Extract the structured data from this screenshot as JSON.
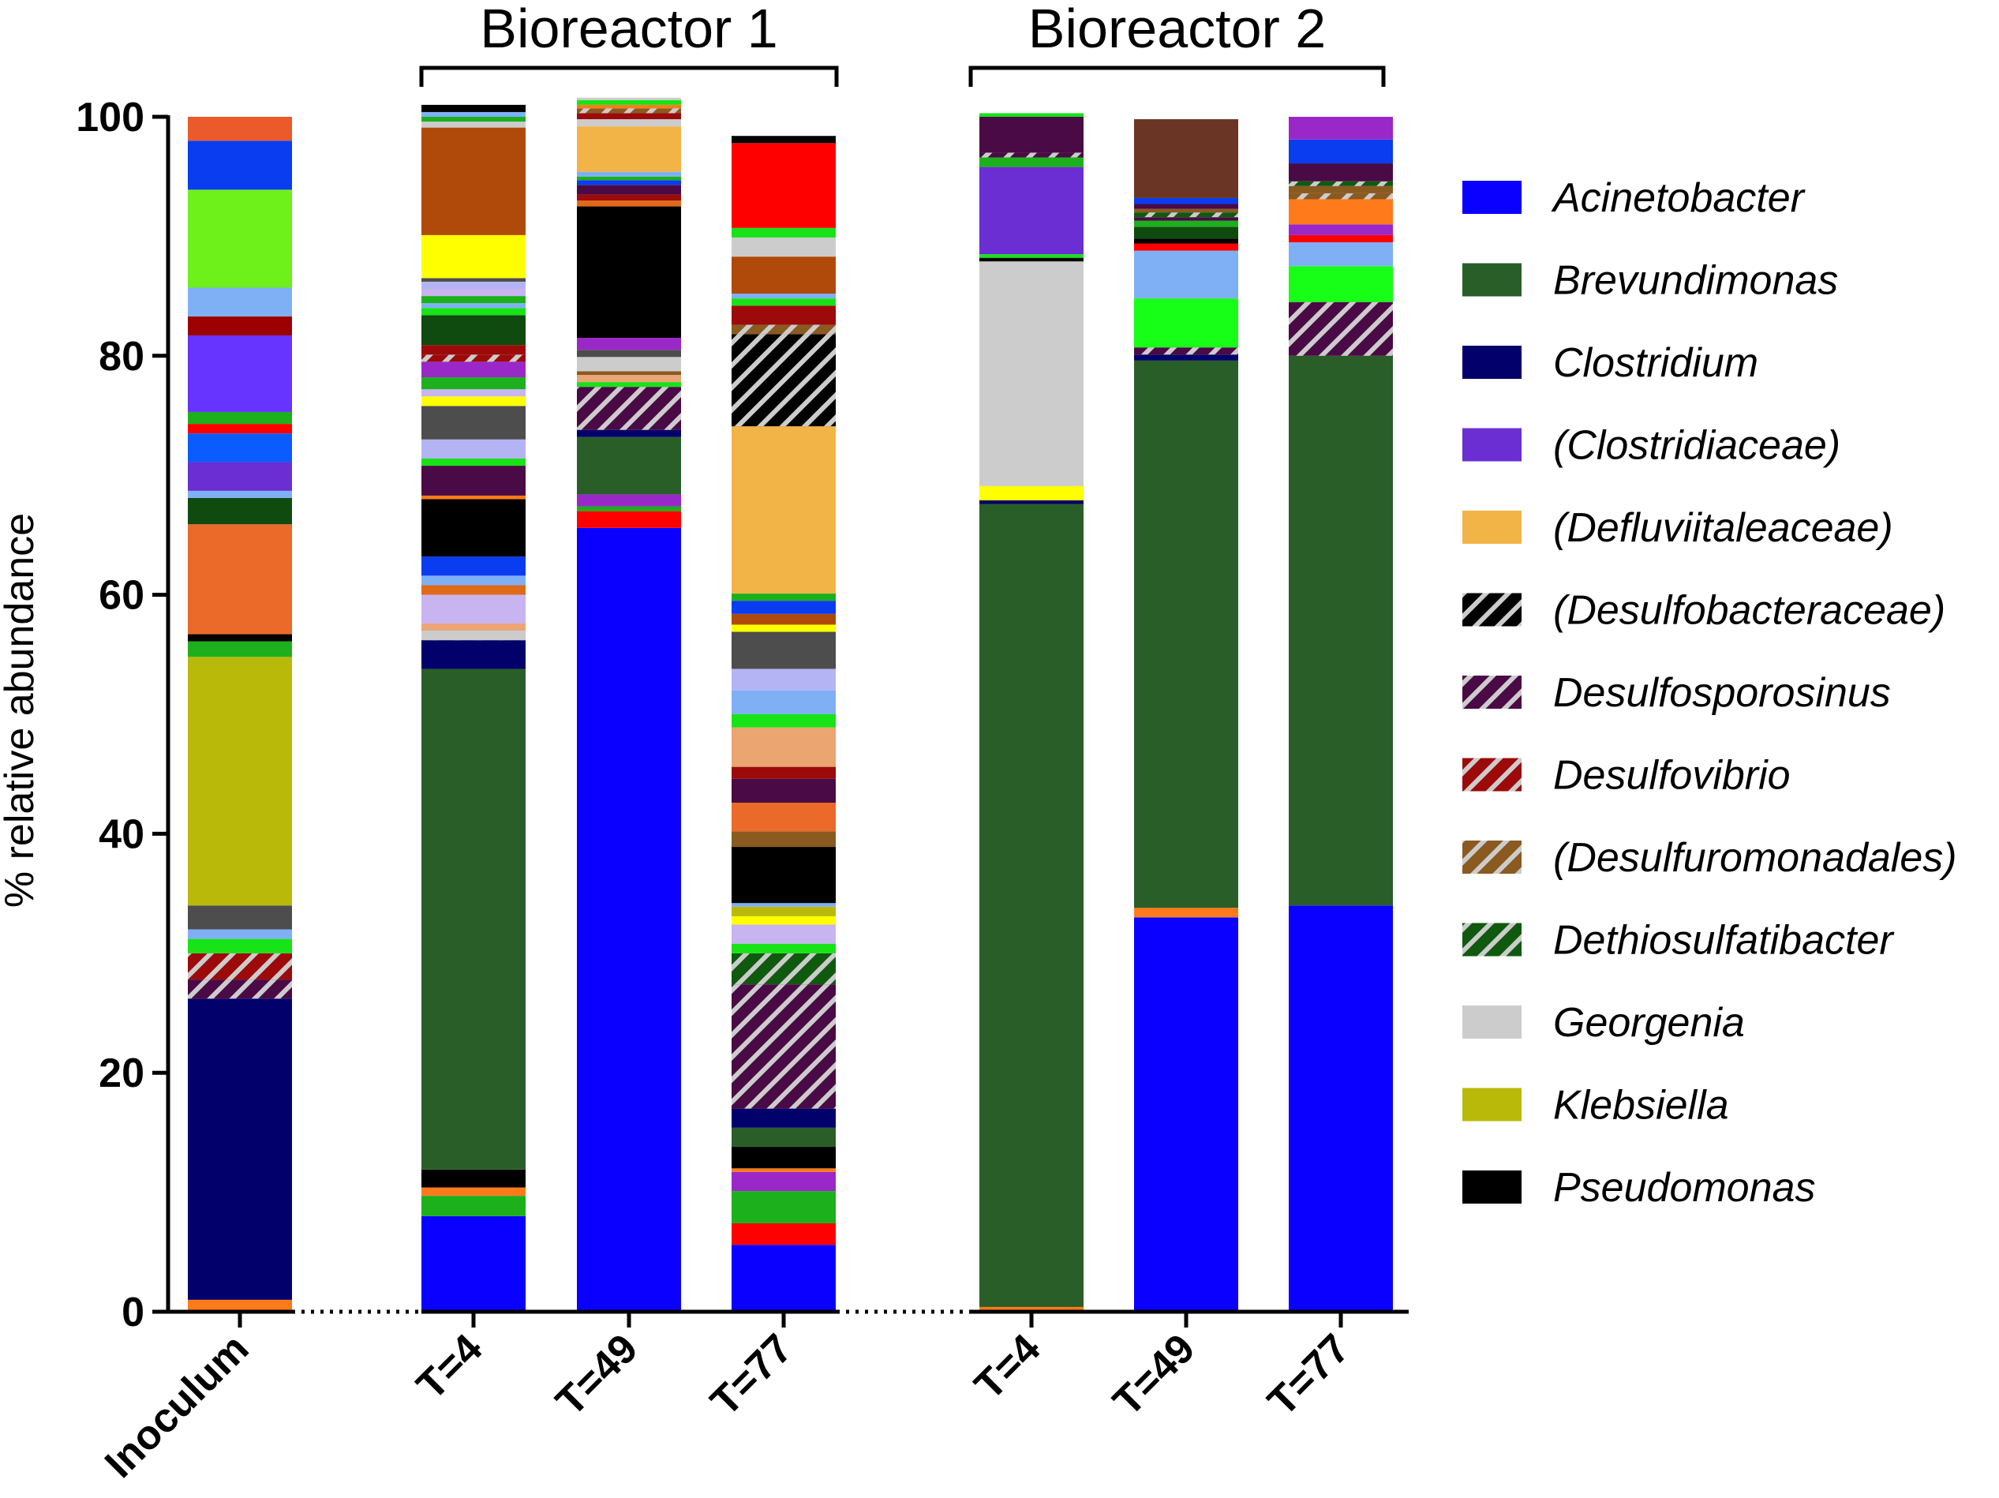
{
  "chart_data": {
    "type": "bar",
    "stacked": true,
    "title": "",
    "ylabel": "% relative abundance",
    "xlabel": "",
    "ylim": [
      0,
      100
    ],
    "yticks": [
      0,
      20,
      40,
      60,
      80,
      100
    ],
    "groups": [
      {
        "name": "",
        "categories": [
          "Inoculum"
        ]
      },
      {
        "name": "Bioreactor 1",
        "categories": [
          "T=4",
          "T=49",
          "T=77"
        ]
      },
      {
        "name": "Bioreactor 2",
        "categories": [
          "T=4",
          "T=49",
          "T=77"
        ]
      }
    ],
    "legend": [
      {
        "label": "Acinetobacter",
        "color": "#0a00ff",
        "hatched": false
      },
      {
        "label": "Brevundimonas",
        "color": "#2a5e28",
        "hatched": false
      },
      {
        "label": "Clostridium",
        "color": "#02006a",
        "hatched": false
      },
      {
        "label": "(Clostridiaceae)",
        "color": "#6a2ed3",
        "hatched": false
      },
      {
        "label": "(Defluviitaleaceae)",
        "color": "#f2b447",
        "hatched": false
      },
      {
        "label": "(Desulfobacteraceae)",
        "color": "#000000",
        "hatched": true
      },
      {
        "label": "Desulfosporosinus",
        "color": "#4a0a45",
        "hatched": true
      },
      {
        "label": "Desulfovibrio",
        "color": "#9c0a0a",
        "hatched": true
      },
      {
        "label": "(Desulfuromonadales)",
        "color": "#8a5a20",
        "hatched": true
      },
      {
        "label": "Dethiosulfatibacter",
        "color": "#0f5a0f",
        "hatched": true
      },
      {
        "label": "Georgenia",
        "color": "#cccccc",
        "hatched": false
      },
      {
        "label": "Klebsiella",
        "color": "#b9b90a",
        "hatched": false
      },
      {
        "label": "Pseudomonas",
        "color": "#000000",
        "hatched": false
      }
    ],
    "bars": [
      {
        "category": "Inoculum",
        "group": "",
        "segments": [
          {
            "v": 1.0,
            "c": "#ff7a1a"
          },
          {
            "v": 25.2,
            "c": "#02006a"
          },
          {
            "v": 1.6,
            "c": "#4a0a45",
            "h": true
          },
          {
            "v": 2.2,
            "c": "#9c0a0a",
            "h": true
          },
          {
            "v": 1.2,
            "c": "#17e317"
          },
          {
            "v": 0.8,
            "c": "#7fb0f5"
          },
          {
            "v": 2.0,
            "c": "#4d4d4d"
          },
          {
            "v": 20.8,
            "c": "#b9b90a"
          },
          {
            "v": 1.3,
            "c": "#1cb01c"
          },
          {
            "v": 0.6,
            "c": "#000000"
          },
          {
            "v": 9.2,
            "c": "#eb6a2a"
          },
          {
            "v": 2.2,
            "c": "#0f4a0f"
          },
          {
            "v": 0.6,
            "c": "#7fb0f5"
          },
          {
            "v": 2.4,
            "c": "#6a2ed3"
          },
          {
            "v": 2.4,
            "c": "#0a5cff"
          },
          {
            "v": 0.8,
            "c": "#ff0000"
          },
          {
            "v": 1.0,
            "c": "#1cb01c"
          },
          {
            "v": 6.4,
            "c": "#6633ff"
          },
          {
            "v": 1.6,
            "c": "#9c0000"
          },
          {
            "v": 2.4,
            "c": "#7fb0f5"
          },
          {
            "v": 8.2,
            "c": "#6ef01a"
          },
          {
            "v": 4.1,
            "c": "#0a3cf0"
          },
          {
            "v": 2.0,
            "c": "#eb5a2a"
          }
        ]
      },
      {
        "category": "T=4",
        "group": "Bioreactor 1",
        "segments": [
          {
            "v": 8.0,
            "c": "#0a00ff"
          },
          {
            "v": 1.7,
            "c": "#1cb01c"
          },
          {
            "v": 0.7,
            "c": "#ff7a1a"
          },
          {
            "v": 1.5,
            "c": "#000000"
          },
          {
            "v": 41.9,
            "c": "#2a5e28"
          },
          {
            "v": 2.4,
            "c": "#02006a"
          },
          {
            "v": 0.8,
            "c": "#cccccc",
            "h": true
          },
          {
            "v": 0.6,
            "c": "#eba577"
          },
          {
            "v": 2.4,
            "c": "#c8b4f0"
          },
          {
            "v": 0.8,
            "c": "#e06a1a"
          },
          {
            "v": 0.8,
            "c": "#7fb0f5"
          },
          {
            "v": 1.6,
            "c": "#0a3cf0"
          },
          {
            "v": 4.8,
            "c": "#000000"
          },
          {
            "v": 0.3,
            "c": "#ff7a1a"
          },
          {
            "v": 2.5,
            "c": "#4a0a45"
          },
          {
            "v": 0.6,
            "c": "#17e317"
          },
          {
            "v": 1.6,
            "c": "#b4b4f5"
          },
          {
            "v": 2.8,
            "c": "#4d4d4d"
          },
          {
            "v": 0.8,
            "c": "#ffff00"
          },
          {
            "v": 0.6,
            "c": "#c8b4f0"
          },
          {
            "v": 1.0,
            "c": "#1cb01c"
          },
          {
            "v": 1.3,
            "c": "#9a28c8"
          },
          {
            "v": 0.6,
            "c": "#9c0a0a",
            "h": true
          },
          {
            "v": 0.8,
            "c": "#9c0a0a"
          },
          {
            "v": 2.5,
            "c": "#0f4a0f"
          },
          {
            "v": 0.6,
            "c": "#17e317"
          },
          {
            "v": 0.4,
            "c": "#7fb0f5"
          },
          {
            "v": 0.6,
            "c": "#1cb01c"
          },
          {
            "v": 0.6,
            "c": "#c8b4f0"
          },
          {
            "v": 0.6,
            "c": "#b4b4f5"
          },
          {
            "v": 0.3,
            "c": "#4d4d4d"
          },
          {
            "v": 3.6,
            "c": "#ffff00"
          },
          {
            "v": 9.0,
            "c": "#b04a0a"
          },
          {
            "v": 0.5,
            "c": "#cccccc"
          },
          {
            "v": 0.4,
            "c": "#1cb01c"
          },
          {
            "v": 0.4,
            "c": "#7fb0f5"
          },
          {
            "v": 0.6,
            "c": "#000000"
          }
        ]
      },
      {
        "category": "T=49",
        "group": "Bioreactor 1",
        "segments": [
          {
            "v": 65.6,
            "c": "#0a00ff"
          },
          {
            "v": 1.4,
            "c": "#ff0000"
          },
          {
            "v": 0.4,
            "c": "#1cb01c"
          },
          {
            "v": 1.0,
            "c": "#9a28c8"
          },
          {
            "v": 4.8,
            "c": "#2a5e28"
          },
          {
            "v": 0.6,
            "c": "#02006a"
          },
          {
            "v": 3.6,
            "c": "#4a0a45",
            "h": true
          },
          {
            "v": 0.4,
            "c": "#17e317"
          },
          {
            "v": 0.6,
            "c": "#eba577"
          },
          {
            "v": 0.3,
            "c": "#8a5a20"
          },
          {
            "v": 1.2,
            "c": "#cccccc"
          },
          {
            "v": 0.6,
            "c": "#4d4d4d"
          },
          {
            "v": 1.0,
            "c": "#9a28c8"
          },
          {
            "v": 11.0,
            "c": "#000000"
          },
          {
            "v": 0.5,
            "c": "#e06a1a"
          },
          {
            "v": 0.5,
            "c": "#9c0a0a"
          },
          {
            "v": 0.8,
            "c": "#4a0a45"
          },
          {
            "v": 0.4,
            "c": "#0a3cf0"
          },
          {
            "v": 0.3,
            "c": "#1cb01c"
          },
          {
            "v": 0.4,
            "c": "#7fb0f5"
          },
          {
            "v": 3.8,
            "c": "#f2b447"
          },
          {
            "v": 0.6,
            "c": "#cccccc",
            "h": true
          },
          {
            "v": 0.5,
            "c": "#9c0a0a"
          },
          {
            "v": 0.4,
            "c": "#8a5a20",
            "h": true
          },
          {
            "v": 0.3,
            "c": "#ff7a1a"
          },
          {
            "v": 0.4,
            "c": "#17e317"
          },
          {
            "v": 0.2,
            "c": "#cccccc"
          }
        ]
      },
      {
        "category": "T=77",
        "group": "Bioreactor 1",
        "segments": [
          {
            "v": 5.6,
            "c": "#0a00ff"
          },
          {
            "v": 1.8,
            "c": "#ff0000"
          },
          {
            "v": 2.7,
            "c": "#1cb01c"
          },
          {
            "v": 1.6,
            "c": "#9a28c8"
          },
          {
            "v": 0.3,
            "c": "#ff7a1a"
          },
          {
            "v": 1.8,
            "c": "#000000"
          },
          {
            "v": 1.6,
            "c": "#2a5e28"
          },
          {
            "v": 1.6,
            "c": "#02006a"
          },
          {
            "v": 10.4,
            "c": "#4a0a45",
            "h": true
          },
          {
            "v": 2.6,
            "c": "#0f5a0f",
            "h": true
          },
          {
            "v": 0.8,
            "c": "#17e317"
          },
          {
            "v": 1.6,
            "c": "#c8b4f0"
          },
          {
            "v": 0.7,
            "c": "#ffff00"
          },
          {
            "v": 0.8,
            "c": "#b9b90a"
          },
          {
            "v": 0.3,
            "c": "#7fb0f5"
          },
          {
            "v": 4.7,
            "c": "#000000"
          },
          {
            "v": 1.3,
            "c": "#8a5a20"
          },
          {
            "v": 2.4,
            "c": "#eb6a2a"
          },
          {
            "v": 2.0,
            "c": "#4a0a45"
          },
          {
            "v": 1.0,
            "c": "#9c0a0a"
          },
          {
            "v": 3.3,
            "c": "#eba570"
          },
          {
            "v": 1.1,
            "c": "#17e317"
          },
          {
            "v": 2.0,
            "c": "#7fb0f5"
          },
          {
            "v": 1.8,
            "c": "#b4b4f5"
          },
          {
            "v": 3.1,
            "c": "#4d4d4d"
          },
          {
            "v": 0.6,
            "c": "#ffff00"
          },
          {
            "v": 0.9,
            "c": "#b04a0a"
          },
          {
            "v": 1.1,
            "c": "#0a3cf0"
          },
          {
            "v": 0.6,
            "c": "#1cb01c"
          },
          {
            "v": 14.0,
            "c": "#f2b447"
          },
          {
            "v": 7.7,
            "c": "#000000",
            "h": true
          },
          {
            "v": 0.8,
            "c": "#8a5a20",
            "h": true
          },
          {
            "v": 1.6,
            "c": "#9c0a0a"
          },
          {
            "v": 0.6,
            "c": "#17e317"
          },
          {
            "v": 0.4,
            "c": "#7fb0f5"
          },
          {
            "v": 3.1,
            "c": "#b04a0a"
          },
          {
            "v": 1.6,
            "c": "#cccccc"
          },
          {
            "v": 0.8,
            "c": "#17e317"
          },
          {
            "v": 7.1,
            "c": "#ff0000"
          },
          {
            "v": 0.6,
            "c": "#000000"
          }
        ]
      },
      {
        "category": "T=4",
        "group": "Bioreactor 2",
        "segments": [
          {
            "v": 0.4,
            "c": "#ff7a1a"
          },
          {
            "v": 67.2,
            "c": "#2a5e28"
          },
          {
            "v": 0.3,
            "c": "#02006a"
          },
          {
            "v": 1.2,
            "c": "#ffff00"
          },
          {
            "v": 18.8,
            "c": "#cccccc"
          },
          {
            "v": 0.3,
            "c": "#000000"
          },
          {
            "v": 0.3,
            "c": "#17e317"
          },
          {
            "v": 7.3,
            "c": "#6a2ed3"
          },
          {
            "v": 0.8,
            "c": "#1cb01c"
          },
          {
            "v": 0.4,
            "c": "#4a0a45",
            "h": true
          },
          {
            "v": 3.0,
            "c": "#4a0a45"
          },
          {
            "v": 0.3,
            "c": "#17e317"
          }
        ]
      },
      {
        "category": "T=49",
        "group": "Bioreactor 2",
        "segments": [
          {
            "v": 33.0,
            "c": "#0a00ff"
          },
          {
            "v": 0.8,
            "c": "#ff7a1a"
          },
          {
            "v": 45.8,
            "c": "#2a5e28"
          },
          {
            "v": 0.5,
            "c": "#02006a"
          },
          {
            "v": 0.6,
            "c": "#4a0a45",
            "h": true
          },
          {
            "v": 4.1,
            "c": "#17ff17"
          },
          {
            "v": 4.0,
            "c": "#7fb0f5"
          },
          {
            "v": 0.6,
            "c": "#ff0000"
          },
          {
            "v": 0.4,
            "c": "#000000"
          },
          {
            "v": 1.0,
            "c": "#0f4a0f"
          },
          {
            "v": 0.5,
            "c": "#1cb01c"
          },
          {
            "v": 0.3,
            "c": "#4a0a45"
          },
          {
            "v": 0.4,
            "c": "#0f5a0f",
            "h": true
          },
          {
            "v": 0.3,
            "c": "#8a5a20"
          },
          {
            "v": 0.4,
            "c": "#4a0a45"
          },
          {
            "v": 0.5,
            "c": "#0a3cf0"
          },
          {
            "v": 6.6,
            "c": "#6b3526"
          }
        ]
      },
      {
        "category": "T=77",
        "group": "Bioreactor 2",
        "segments": [
          {
            "v": 34.0,
            "c": "#0a00ff"
          },
          {
            "v": 46.0,
            "c": "#2a5e28"
          },
          {
            "v": 4.5,
            "c": "#4a0a45",
            "h": true
          },
          {
            "v": 3.0,
            "c": "#17ff17"
          },
          {
            "v": 2.0,
            "c": "#7fb0f5"
          },
          {
            "v": 0.6,
            "c": "#ff0000"
          },
          {
            "v": 0.9,
            "c": "#9a28c8"
          },
          {
            "v": 2.1,
            "c": "#ff7a1a"
          },
          {
            "v": 0.5,
            "c": "#8a5a20",
            "h": true
          },
          {
            "v": 0.6,
            "c": "#8a5a20"
          },
          {
            "v": 0.4,
            "c": "#0f5a0f",
            "h": true
          },
          {
            "v": 1.5,
            "c": "#4a0a45"
          },
          {
            "v": 2.0,
            "c": "#0a3cf0"
          },
          {
            "v": 1.9,
            "c": "#9a28c8"
          }
        ]
      }
    ]
  }
}
